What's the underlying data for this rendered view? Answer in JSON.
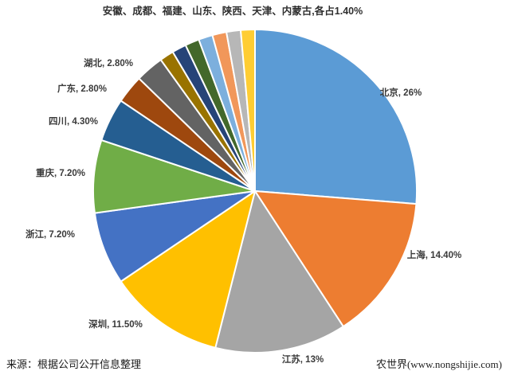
{
  "chart_data": {
    "type": "pie",
    "title": "安徽、成都、福建、山东、陕西、天津、内蒙古,各占1.40%",
    "legend": "none",
    "start_angle_deg": 0,
    "direction": "clockwise",
    "slice_border_color": "#ffffff",
    "label_color": "#3a3a3a",
    "slices": [
      {
        "name": "北京",
        "value": 26,
        "label": "北京, 26%",
        "color": "#5B9BD5"
      },
      {
        "name": "上海",
        "value": 14.4,
        "label": "上海, 14.40%",
        "color": "#ED7D31"
      },
      {
        "name": "江苏",
        "value": 13,
        "label": "江苏, 13%",
        "color": "#A5A5A5"
      },
      {
        "name": "深圳",
        "value": 11.5,
        "label": "深圳, 11.50%",
        "color": "#FFC000"
      },
      {
        "name": "浙江",
        "value": 7.2,
        "label": "浙江, 7.20%",
        "color": "#4472C4"
      },
      {
        "name": "重庆",
        "value": 7.2,
        "label": "重庆, 7.20%",
        "color": "#70AD47"
      },
      {
        "name": "四川",
        "value": 4.3,
        "label": "四川, 4.30%",
        "color": "#255E91"
      },
      {
        "name": "广东",
        "value": 2.8,
        "label": "广东, 2.80%",
        "color": "#9E480E"
      },
      {
        "name": "湖北",
        "value": 2.8,
        "label": "湖北, 2.80%",
        "color": "#636363"
      },
      {
        "name": "安徽",
        "value": 1.4,
        "label": null,
        "color": "#997300"
      },
      {
        "name": "成都",
        "value": 1.4,
        "label": null,
        "color": "#264478"
      },
      {
        "name": "福建",
        "value": 1.4,
        "label": null,
        "color": "#43682B"
      },
      {
        "name": "山东",
        "value": 1.4,
        "label": null,
        "color": "#7CAFDD"
      },
      {
        "name": "陕西",
        "value": 1.4,
        "label": null,
        "color": "#F1975A"
      },
      {
        "name": "天津",
        "value": 1.4,
        "label": null,
        "color": "#B7B7B7"
      },
      {
        "name": "内蒙古",
        "value": 1.4,
        "label": null,
        "color": "#FFCD33"
      }
    ]
  },
  "footer": {
    "source_text": "来源：根据公司公开信息整理",
    "watermark": "农世界(www.nongshijie.com)"
  }
}
